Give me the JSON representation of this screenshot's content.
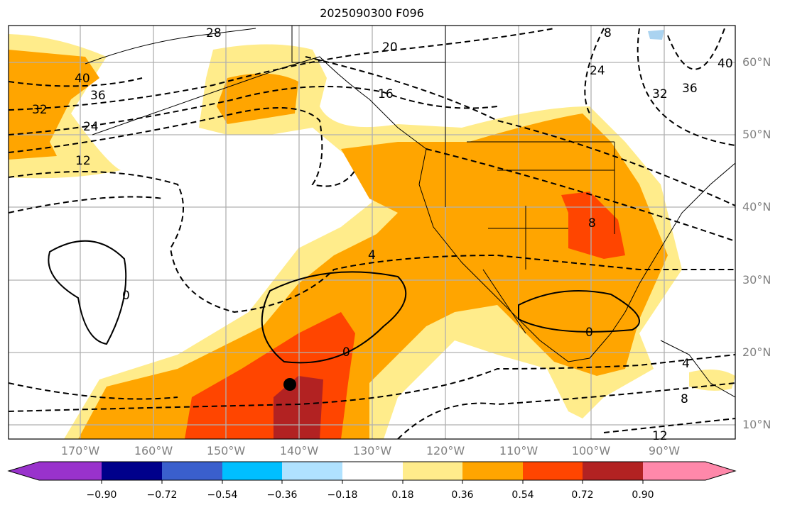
{
  "title": "2025090300 F096",
  "lat_labels": [
    "60°N",
    "50°N",
    "40°N",
    "30°N",
    "20°N",
    "10°N"
  ],
  "lon_labels": [
    "170°W",
    "160°W",
    "150°W",
    "140°W",
    "130°W",
    "120°W",
    "110°W",
    "100°W",
    "90°W"
  ],
  "colorbar": {
    "ticks": [
      "−0.90",
      "−0.72",
      "−0.54",
      "−0.36",
      "−0.18",
      "0.18",
      "0.36",
      "0.54",
      "0.72",
      "0.90"
    ],
    "colors": [
      "#9932cc",
      "#00008b",
      "#3a5fcd",
      "#00bfff",
      "#b0e2ff",
      "#ffffff",
      "#ffec8b",
      "#ffa500",
      "#ff4500",
      "#b22222",
      "#ff88aa"
    ]
  },
  "contour_labels": [
    "28",
    "20",
    "16",
    "40",
    "36",
    "32",
    "24",
    "12",
    "4",
    "8",
    "0",
    "0",
    "0",
    "8",
    "24",
    "32",
    "36",
    "40",
    "4",
    "8",
    "12"
  ],
  "marker": "storm-center-dot"
}
